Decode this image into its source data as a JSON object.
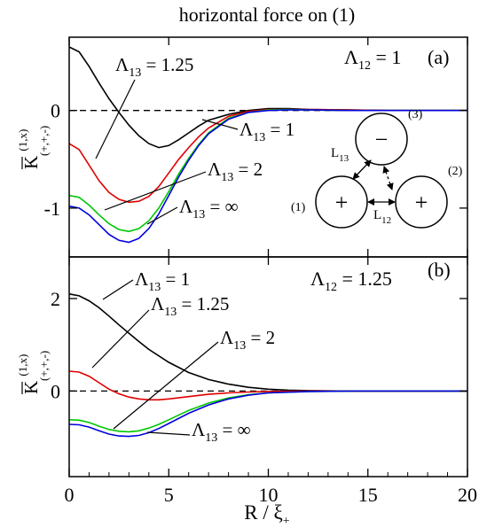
{
  "figure_title": "horizontal force on (1)",
  "x_axis_label": "R / ξ",
  "x_axis_label_sub": "+",
  "chart_data": [
    {
      "type": "line",
      "panel_label": "(a)",
      "param_text": "Λ",
      "param_sub": "12",
      "param_value": " = 1",
      "ylabel_main": "K",
      "ylabel_sup": "(1,x)",
      "ylabel_sub": "(+,+,-)",
      "xlim": [
        0,
        20
      ],
      "ylim": [
        -1.5,
        0.75
      ],
      "xticks": [
        0,
        5,
        10,
        15,
        20
      ],
      "yticks": [
        0,
        -1
      ],
      "ytick_labels": [
        "0",
        "-1"
      ],
      "zero_line": "dashed",
      "series": [
        {
          "key": "1",
          "color": "#000000",
          "x": [
            0,
            0.5,
            1,
            1.5,
            2,
            2.5,
            3,
            3.5,
            4,
            4.5,
            5,
            5.5,
            6,
            6.5,
            7,
            8,
            9,
            10,
            11,
            12,
            14,
            16,
            18,
            20
          ],
          "y": [
            0.65,
            0.6,
            0.45,
            0.28,
            0.12,
            -0.02,
            -0.15,
            -0.26,
            -0.34,
            -0.38,
            -0.36,
            -0.3,
            -0.23,
            -0.16,
            -0.1,
            -0.04,
            0.0,
            0.02,
            0.02,
            0.01,
            0.005,
            0.0,
            0.0,
            0.0
          ]
        },
        {
          "key": "1.25",
          "color": "#e00000",
          "x": [
            0,
            0.5,
            1,
            1.5,
            2,
            2.5,
            3,
            3.5,
            4,
            4.5,
            5,
            5.5,
            6,
            6.5,
            7,
            8,
            9,
            10,
            11,
            12,
            14,
            16,
            18,
            20
          ],
          "y": [
            -0.34,
            -0.4,
            -0.56,
            -0.72,
            -0.84,
            -0.91,
            -0.94,
            -0.93,
            -0.88,
            -0.78,
            -0.64,
            -0.5,
            -0.38,
            -0.27,
            -0.18,
            -0.06,
            -0.01,
            0.01,
            0.01,
            0.01,
            0.005,
            0.0,
            0.0,
            0.0
          ]
        },
        {
          "key": "2",
          "color": "#00c800",
          "x": [
            0,
            0.5,
            1,
            1.5,
            2,
            2.5,
            3,
            3.5,
            4,
            4.5,
            5,
            5.5,
            6,
            6.5,
            7,
            8,
            9,
            10,
            11,
            12,
            14,
            16,
            18,
            20
          ],
          "y": [
            -0.87,
            -0.89,
            -0.97,
            -1.07,
            -1.16,
            -1.22,
            -1.24,
            -1.21,
            -1.13,
            -1.0,
            -0.83,
            -0.65,
            -0.49,
            -0.35,
            -0.23,
            -0.08,
            -0.02,
            0.005,
            0.01,
            0.005,
            0.0,
            0.0,
            0.0,
            0.0
          ]
        },
        {
          "key": "inf",
          "color": "#0000e0",
          "x": [
            0,
            0.5,
            1,
            1.5,
            2,
            2.5,
            3,
            3.5,
            4,
            4.5,
            5,
            5.5,
            6,
            6.5,
            7,
            8,
            9,
            10,
            11,
            12,
            14,
            16,
            18,
            20
          ],
          "y": [
            -0.98,
            -1.0,
            -1.07,
            -1.17,
            -1.27,
            -1.33,
            -1.35,
            -1.31,
            -1.21,
            -1.06,
            -0.87,
            -0.68,
            -0.51,
            -0.36,
            -0.24,
            -0.09,
            -0.02,
            0.0,
            0.005,
            0.005,
            0.0,
            0.0,
            0.0,
            0.0
          ]
        }
      ],
      "annotations": [
        {
          "main": "Λ",
          "sub": "13",
          "value": " = 1.25"
        },
        {
          "main": "Λ",
          "sub": "13",
          "value": " = 1"
        },
        {
          "main": "Λ",
          "sub": "13",
          "value": " = 2"
        },
        {
          "main": "Λ",
          "sub": "13",
          "value": " = ∞"
        }
      ],
      "inset": {
        "circle_top_sign": "−",
        "circle_left_sign": "+",
        "circle_right_sign": "+",
        "label_top": "(3)",
        "label_left": "(1)",
        "label_right": "(2)",
        "l13_main": "L",
        "l13_sub": "13",
        "l12_main": "L",
        "l12_sub": "12"
      }
    },
    {
      "type": "line",
      "panel_label": "(b)",
      "param_text": "Λ",
      "param_sub": "12",
      "param_value": " = 1.25",
      "ylabel_main": "K",
      "ylabel_sup": "(1,x)",
      "ylabel_sub": "(+,+,-)",
      "xlim": [
        0,
        20
      ],
      "ylim": [
        -1.85,
        2.9
      ],
      "xticks": [
        0,
        5,
        10,
        15,
        20
      ],
      "xtick_labels": [
        "0",
        "5",
        "10",
        "15",
        "20"
      ],
      "yticks": [
        2,
        0
      ],
      "ytick_labels": [
        "2",
        "0"
      ],
      "zero_line": "dashed",
      "series": [
        {
          "key": "1",
          "color": "#000000",
          "x": [
            0,
            0.5,
            1,
            1.5,
            2,
            2.5,
            3,
            3.5,
            4,
            5,
            6,
            7,
            8,
            9,
            10,
            11,
            12,
            14,
            16,
            18,
            20
          ],
          "y": [
            2.1,
            2.06,
            1.95,
            1.8,
            1.62,
            1.43,
            1.25,
            1.07,
            0.9,
            0.62,
            0.4,
            0.25,
            0.15,
            0.08,
            0.04,
            0.02,
            0.01,
            0.0,
            0.0,
            0.0,
            0.0
          ]
        },
        {
          "key": "1.25",
          "color": "#e00000",
          "x": [
            0,
            0.5,
            1,
            1.5,
            2,
            2.5,
            3,
            3.5,
            4,
            4.5,
            5,
            6,
            7,
            8,
            9,
            10,
            12,
            14,
            16,
            18,
            20
          ],
          "y": [
            0.43,
            0.41,
            0.32,
            0.18,
            0.04,
            -0.06,
            -0.13,
            -0.17,
            -0.19,
            -0.19,
            -0.17,
            -0.12,
            -0.07,
            -0.04,
            -0.02,
            -0.01,
            0.0,
            0.0,
            0.0,
            0.0,
            0.0
          ]
        },
        {
          "key": "2",
          "color": "#00c800",
          "x": [
            0,
            0.5,
            1,
            1.5,
            2,
            2.5,
            3,
            3.5,
            4,
            4.5,
            5,
            6,
            7,
            8,
            9,
            10,
            12,
            14,
            16,
            18,
            20
          ],
          "y": [
            -0.62,
            -0.63,
            -0.68,
            -0.76,
            -0.83,
            -0.87,
            -0.88,
            -0.86,
            -0.8,
            -0.72,
            -0.62,
            -0.42,
            -0.26,
            -0.15,
            -0.08,
            -0.04,
            -0.01,
            0.0,
            0.0,
            0.0,
            0.0
          ]
        },
        {
          "key": "inf",
          "color": "#0000e0",
          "x": [
            0,
            0.5,
            1,
            1.5,
            2,
            2.5,
            3,
            3.5,
            4,
            4.5,
            5,
            6,
            7,
            8,
            9,
            10,
            12,
            14,
            16,
            18,
            20
          ],
          "y": [
            -0.72,
            -0.73,
            -0.78,
            -0.86,
            -0.93,
            -0.97,
            -0.98,
            -0.96,
            -0.9,
            -0.81,
            -0.7,
            -0.48,
            -0.3,
            -0.17,
            -0.09,
            -0.04,
            -0.01,
            0.0,
            0.0,
            0.0,
            0.0
          ]
        }
      ],
      "annotations": [
        {
          "main": "Λ",
          "sub": "13",
          "value": " = 1"
        },
        {
          "main": "Λ",
          "sub": "13",
          "value": " = 1.25"
        },
        {
          "main": "Λ",
          "sub": "13",
          "value": " = 2"
        },
        {
          "main": "Λ",
          "sub": "13",
          "value": " = ∞"
        }
      ]
    }
  ]
}
